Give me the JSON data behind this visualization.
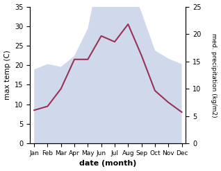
{
  "months": [
    "Jan",
    "Feb",
    "Mar",
    "Apr",
    "May",
    "Jun",
    "Jul",
    "Aug",
    "Sep",
    "Oct",
    "Nov",
    "Dec"
  ],
  "max_temp": [
    8.5,
    9.5,
    14.0,
    21.5,
    21.5,
    27.5,
    26.0,
    30.5,
    22.5,
    13.5,
    10.5,
    8.0
  ],
  "precipitation": [
    13.5,
    14.5,
    14.0,
    16.0,
    21.0,
    33.0,
    28.0,
    30.0,
    24.0,
    17.0,
    15.5,
    14.5
  ],
  "temp_color": "#993355",
  "precip_color": "#aabbdd",
  "precip_fill_alpha": 0.55,
  "left_ylim": [
    0,
    35
  ],
  "right_ylim": [
    0,
    25
  ],
  "left_yticks": [
    0,
    5,
    10,
    15,
    20,
    25,
    30,
    35
  ],
  "right_yticks": [
    0,
    5,
    10,
    15,
    20,
    25
  ],
  "xlabel": "date (month)",
  "ylabel_left": "max temp (C)",
  "ylabel_right": "med. precipitation (kg/m2)",
  "background_color": "#ffffff"
}
